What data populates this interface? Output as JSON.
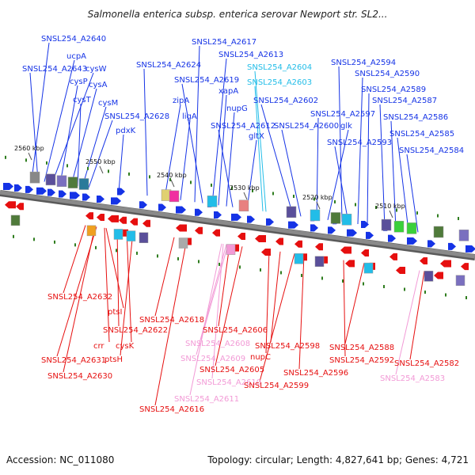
{
  "title": "Salmonella enterica subsp. enterica serovar Newport str. SL2...",
  "accession": "Accession: NC_011080",
  "topology": "Topology: circular; Length: 4,827,641 bp; Genes: 4,721",
  "colors": {
    "forward": "#1533e6",
    "reverse": "#e60f0f",
    "rna_blue": "#22bde8",
    "rna_pink": "#f29ad6",
    "backbone": "#8a8a8a",
    "marker": "#2f7d1f"
  },
  "ticks": [
    "2560 kbp",
    "2550 kbp",
    "2540 kbp",
    "2530 kbp",
    "2520 kbp",
    "2510 kbp"
  ],
  "top_labels": [
    "SNSL254_A2640",
    "ucpA",
    "SNSL254_A2643",
    "cysW",
    "cysP",
    "cysA",
    "cysT",
    "cysM",
    "SNSL254_A2628",
    "pdxK",
    "SNSL254_A2624",
    "zipA",
    "ligA",
    "SNSL254_A2617",
    "SNSL254_A2613",
    "SNSL254_A2619",
    "xapA",
    "nupG",
    "SNSL254_A2612",
    "gltX",
    "SNSL254_A2604",
    "SNSL254_A2603",
    "SNSL254_A2602",
    "SNSL254_A2600",
    "SNSL254_A2597",
    "glk",
    "SNSL254_A2593",
    "SNSL254_A2594",
    "SNSL254_A2590",
    "SNSL254_A2589",
    "SNSL254_A2587",
    "SNSL254_A2586",
    "SNSL254_A2585",
    "SNSL254_A2584"
  ],
  "bottom_labels": [
    "SNSL254_A2632",
    "ptsI",
    "SNSL254_A2622",
    "crr",
    "cysK",
    "ptsH",
    "SNSL254_A2631",
    "SNSL254_A2630",
    "SNSL254_A2618",
    "SNSL254_A2616",
    "SNSL254_A2606",
    "SNSL254_A2608",
    "SNSL254_A2609",
    "SNSL254_A2605",
    "SNSL254_A2610",
    "SNSL254_A2611",
    "nupC",
    "SNSL254_A2598",
    "SNSL254_A2599",
    "SNSL254_A2596",
    "SNSL254_A2592",
    "SNSL254_A2588",
    "SNSL254_A2582",
    "SNSL254_A2583"
  ]
}
